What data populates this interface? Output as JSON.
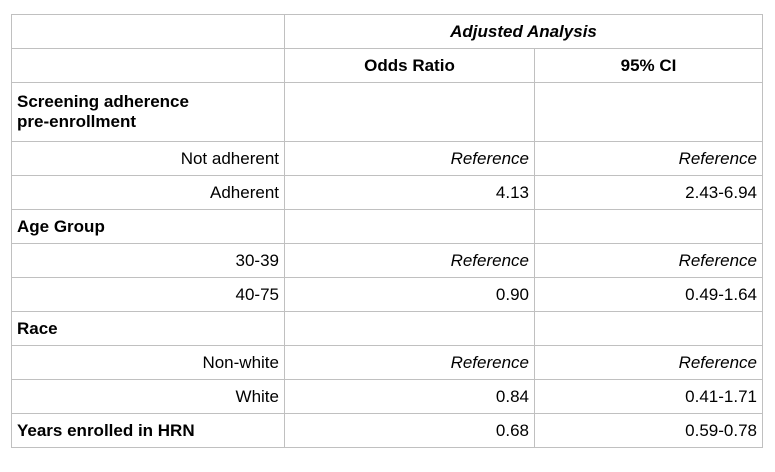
{
  "header": {
    "title": "Adjusted Analysis",
    "columns": [
      "Odds Ratio",
      "95% CI"
    ]
  },
  "sections": [
    {
      "label": "Screening adherence pre-enrollment",
      "rows": [
        {
          "label": "Not adherent",
          "odds_ratio": "Reference",
          "ci": "Reference"
        },
        {
          "label": "Adherent",
          "odds_ratio": "4.13",
          "ci": "2.43-6.94"
        }
      ]
    },
    {
      "label": "Age Group",
      "rows": [
        {
          "label": "30-39",
          "odds_ratio": "Reference",
          "ci": "Reference"
        },
        {
          "label": "40-75",
          "odds_ratio": "0.90",
          "ci": "0.49-1.64"
        }
      ]
    },
    {
      "label": "Race",
      "rows": [
        {
          "label": "Non-white",
          "odds_ratio": "Reference",
          "ci": "Reference"
        },
        {
          "label": "White",
          "odds_ratio": "0.84",
          "ci": "0.41-1.71"
        }
      ]
    },
    {
      "label": "Years enrolled in HRN",
      "odds_ratio": "0.68",
      "ci": "0.59-0.78"
    }
  ]
}
